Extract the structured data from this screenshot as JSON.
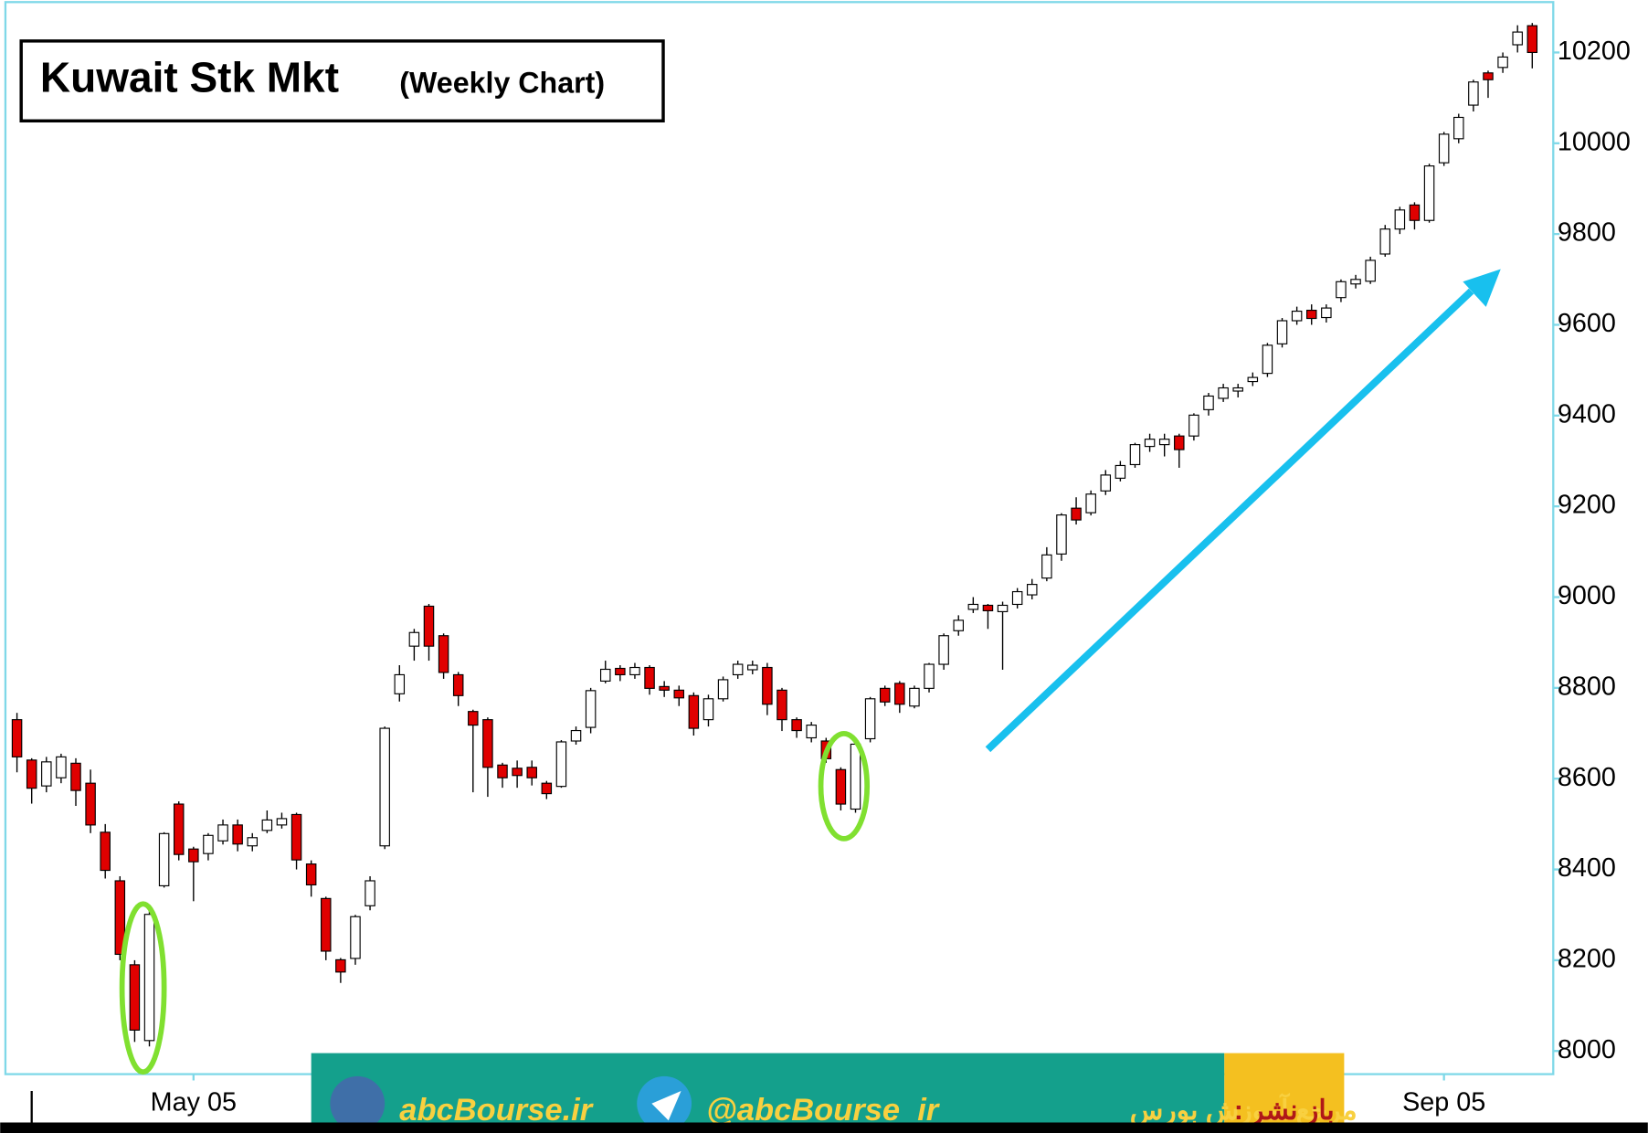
{
  "chart_data": {
    "type": "candlestick",
    "title": "Kuwait Stk Mkt",
    "subtitle": "(Weekly Chart)",
    "categories": [
      null,
      null,
      null,
      null,
      null,
      null,
      null,
      null,
      null,
      null,
      null,
      null,
      "May 05",
      null,
      null,
      null,
      null,
      null,
      null,
      null,
      null,
      null,
      null,
      null,
      null,
      null,
      null,
      null,
      null,
      null,
      null,
      null,
      null,
      null,
      null,
      null,
      null,
      null,
      null,
      null,
      null,
      null,
      null,
      null,
      null,
      null,
      null,
      null,
      null,
      null,
      null,
      null,
      null,
      null,
      null,
      null,
      null,
      null,
      null,
      null,
      null,
      null,
      null,
      null,
      null,
      null,
      null,
      null,
      null,
      null,
      null,
      null,
      null,
      null,
      null,
      null,
      null,
      null,
      null,
      null,
      null,
      null,
      null,
      null,
      null,
      null,
      null,
      null,
      null,
      null,
      null,
      null,
      null,
      null,
      null,
      null,
      null,
      "Sep 05",
      null,
      null,
      null,
      null,
      null,
      null
    ],
    "open": [
      8730,
      8641,
      8584,
      8602,
      8634,
      8590,
      8482,
      8375,
      8190,
      8023,
      8364,
      8544,
      8445,
      8435,
      8463,
      8498,
      8452,
      8486,
      8498,
      8521,
      8412,
      8336,
      8201,
      8204,
      8320,
      8452,
      8787,
      8892,
      8980,
      8915,
      8829,
      8748,
      8730,
      8630,
      8623,
      8625,
      8590,
      8583,
      8683,
      8713,
      8815,
      8843,
      8829,
      8845,
      8803,
      8795,
      8783,
      8730,
      8776,
      8829,
      8840,
      8845,
      8795,
      8730,
      8690,
      8683,
      8620,
      8533,
      8688,
      8799,
      8810,
      8760,
      8799,
      8852,
      8926,
      8973,
      8982,
      8968,
      8984,
      9005,
      9042,
      9095,
      9196,
      9186,
      9234,
      9262,
      9292,
      9332,
      9336,
      9355,
      9355,
      9413,
      9438,
      9454,
      9475,
      9493,
      9558,
      9609,
      9632,
      9616,
      9660,
      9690,
      9696,
      9756,
      9811,
      9864,
      9830,
      9957,
      10010,
      10084,
      10155,
      10167,
      10217,
      10259
    ],
    "high": [
      8745,
      8645,
      8648,
      8655,
      8645,
      8620,
      8500,
      8385,
      8200,
      8310,
      8482,
      8550,
      8450,
      8480,
      8510,
      8510,
      8480,
      8530,
      8525,
      8525,
      8420,
      8340,
      8205,
      8300,
      8385,
      8715,
      8850,
      8930,
      8985,
      8920,
      8835,
      8752,
      8735,
      8635,
      8640,
      8640,
      8595,
      8685,
      8715,
      8800,
      8860,
      8850,
      8855,
      8850,
      8815,
      8805,
      8790,
      8785,
      8825,
      8860,
      8860,
      8855,
      8800,
      8735,
      8725,
      8690,
      8625,
      8680,
      8780,
      8805,
      8815,
      8805,
      8855,
      8920,
      8960,
      9000,
      8985,
      8990,
      9020,
      9040,
      9110,
      9185,
      9220,
      9235,
      9280,
      9300,
      9340,
      9360,
      9360,
      9360,
      9405,
      9450,
      9470,
      9470,
      9495,
      9560,
      9615,
      9640,
      9645,
      9645,
      9700,
      9710,
      9750,
      9820,
      9860,
      9870,
      9955,
      10025,
      10065,
      10140,
      10160,
      10200,
      10260,
      10265
    ],
    "low": [
      8614,
      8545,
      8570,
      8590,
      8540,
      8480,
      8380,
      8200,
      8020,
      8010,
      8360,
      8420,
      8330,
      8420,
      8455,
      8440,
      8440,
      8480,
      8490,
      8400,
      8340,
      8200,
      8150,
      8190,
      8310,
      8445,
      8770,
      8860,
      8860,
      8820,
      8760,
      8570,
      8560,
      8580,
      8580,
      8585,
      8555,
      8580,
      8675,
      8700,
      8810,
      8815,
      8820,
      8785,
      8780,
      8760,
      8695,
      8715,
      8770,
      8820,
      8830,
      8740,
      8705,
      8690,
      8680,
      8635,
      8530,
      8525,
      8680,
      8760,
      8745,
      8755,
      8790,
      8840,
      8915,
      8965,
      8930,
      8840,
      8975,
      8995,
      9035,
      9080,
      9160,
      9180,
      9225,
      9255,
      9285,
      9320,
      9310,
      9285,
      9345,
      9400,
      9430,
      9440,
      9465,
      9485,
      9550,
      9600,
      9600,
      9605,
      9650,
      9680,
      9690,
      9750,
      9800,
      9810,
      9825,
      9950,
      10000,
      10070,
      10100,
      10155,
      10200,
      10165
    ],
    "close": [
      8648,
      8579,
      8637,
      8648,
      8574,
      8498,
      8398,
      8213,
      8046,
      8301,
      8479,
      8433,
      8417,
      8475,
      8498,
      8456,
      8470,
      8509,
      8512,
      8421,
      8366,
      8220,
      8174,
      8296,
      8375,
      8711,
      8829,
      8922,
      8892,
      8834,
      8783,
      8718,
      8625,
      8602,
      8607,
      8602,
      8567,
      8681,
      8706,
      8794,
      8841,
      8829,
      8845,
      8799,
      8795,
      8778,
      8711,
      8776,
      8818,
      8852,
      8850,
      8764,
      8730,
      8706,
      8718,
      8644,
      8544,
      8676,
      8776,
      8769,
      8764,
      8799,
      8852,
      8915,
      8949,
      8984,
      8970,
      8982,
      9012,
      9028,
      9093,
      9181,
      9170,
      9227,
      9269,
      9290,
      9336,
      9348,
      9348,
      9325,
      9401,
      9443,
      9461,
      9461,
      9484,
      9555,
      9609,
      9630,
      9614,
      9637,
      9695,
      9700,
      9742,
      9811,
      9853,
      9830,
      9950,
      10020,
      10057,
      10135,
      10140,
      10190,
      10245,
      10200
    ],
    "up_color": "#ffffff",
    "down_color": "#e00000",
    "ylim": [
      7949,
      10311
    ],
    "yticks": [
      8000,
      8200,
      8400,
      8600,
      8800,
      9000,
      9200,
      9400,
      9600,
      9800,
      10000,
      10200
    ]
  },
  "banner": {
    "site": "abcBourse.ir",
    "channel": "@abcBourse_ir",
    "tagline": "مرجع آموزش بورس",
    "repost": "باز نشر :"
  }
}
